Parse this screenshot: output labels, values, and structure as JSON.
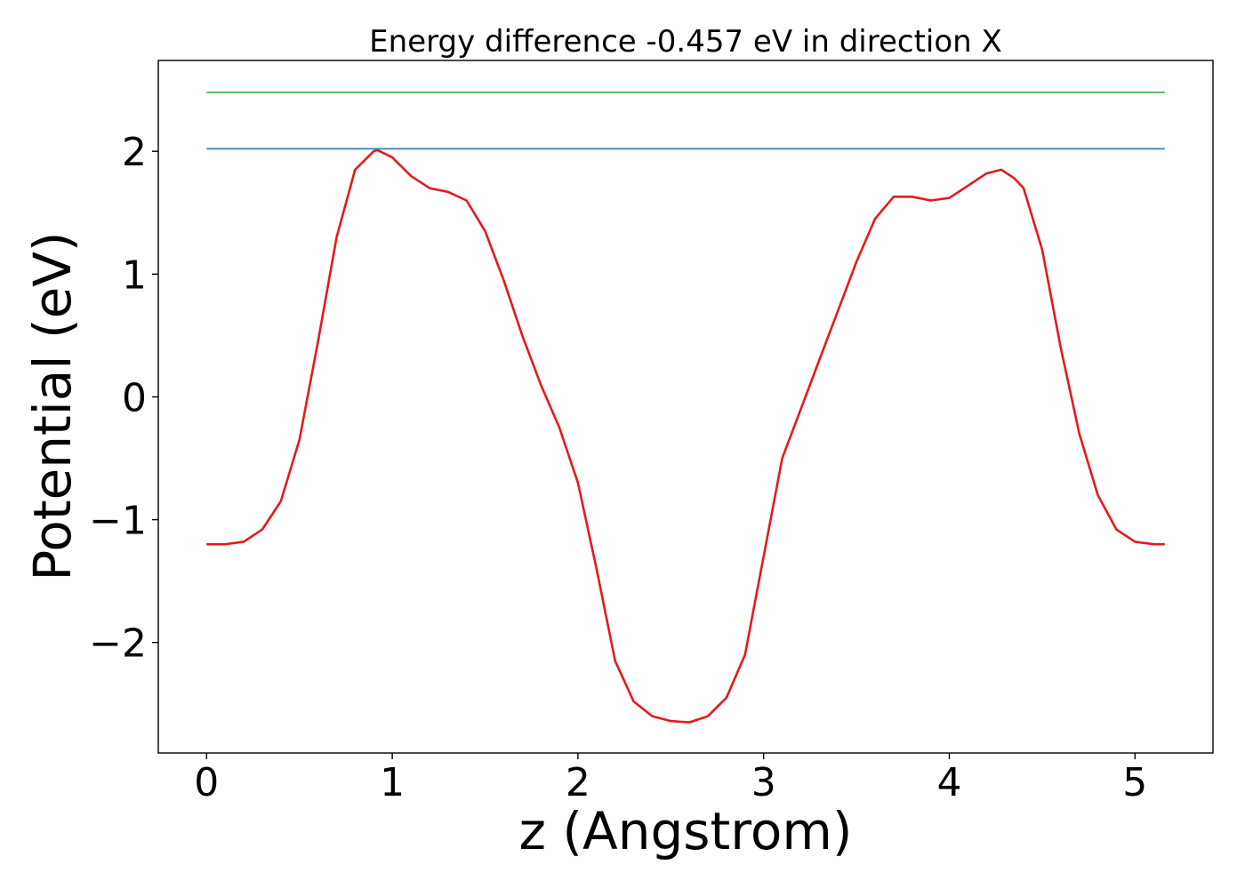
{
  "chart_data": {
    "type": "line",
    "title": "Energy difference -0.457 eV in direction X",
    "xlabel": "z (Angstrom)",
    "ylabel": "Potential (eV)",
    "xlim": [
      -0.26,
      5.42
    ],
    "ylim": [
      -2.9,
      2.74
    ],
    "xticks": [
      0,
      1,
      2,
      3,
      4,
      5
    ],
    "xtick_labels": [
      "0",
      "1",
      "2",
      "3",
      "4",
      "5"
    ],
    "yticks": [
      -2,
      -1,
      0,
      1,
      2
    ],
    "ytick_labels": [
      "−2",
      "−1",
      "0",
      "1",
      "2"
    ],
    "grid": false,
    "legend": false,
    "series": [
      {
        "color": "#e41a1c",
        "x": [
          0,
          0.1,
          0.2,
          0.3,
          0.4,
          0.5,
          0.6,
          0.7,
          0.8,
          0.9,
          0.92,
          1.0,
          1.1,
          1.2,
          1.3,
          1.4,
          1.5,
          1.6,
          1.7,
          1.8,
          1.9,
          2.0,
          2.1,
          2.2,
          2.3,
          2.4,
          2.5,
          2.6,
          2.7,
          2.8,
          2.9,
          3.0,
          3.1,
          3.2,
          3.3,
          3.4,
          3.5,
          3.6,
          3.7,
          3.8,
          3.9,
          4.0,
          4.1,
          4.2,
          4.28,
          4.35,
          4.4,
          4.5,
          4.6,
          4.7,
          4.8,
          4.9,
          5.0,
          5.1,
          5.16
        ],
        "y": [
          -1.2,
          -1.2,
          -1.18,
          -1.08,
          -0.85,
          -0.35,
          0.45,
          1.3,
          1.85,
          2.0,
          2.01,
          1.95,
          1.8,
          1.7,
          1.67,
          1.6,
          1.35,
          0.95,
          0.5,
          0.1,
          -0.25,
          -0.7,
          -1.4,
          -2.15,
          -2.48,
          -2.6,
          -2.64,
          -2.65,
          -2.6,
          -2.45,
          -2.1,
          -1.3,
          -0.5,
          -0.1,
          0.3,
          0.7,
          1.1,
          1.45,
          1.63,
          1.63,
          1.6,
          1.62,
          1.72,
          1.82,
          1.85,
          1.78,
          1.7,
          1.2,
          0.4,
          -0.3,
          -0.8,
          -1.08,
          -1.18,
          -1.2,
          -1.2
        ]
      },
      {
        "color": "#377eb8",
        "x": [
          0,
          5.16
        ],
        "y": [
          2.02,
          2.02
        ]
      },
      {
        "color": "#4daf4a",
        "x": [
          0,
          5.16
        ],
        "y": [
          2.48,
          2.48
        ]
      }
    ]
  }
}
